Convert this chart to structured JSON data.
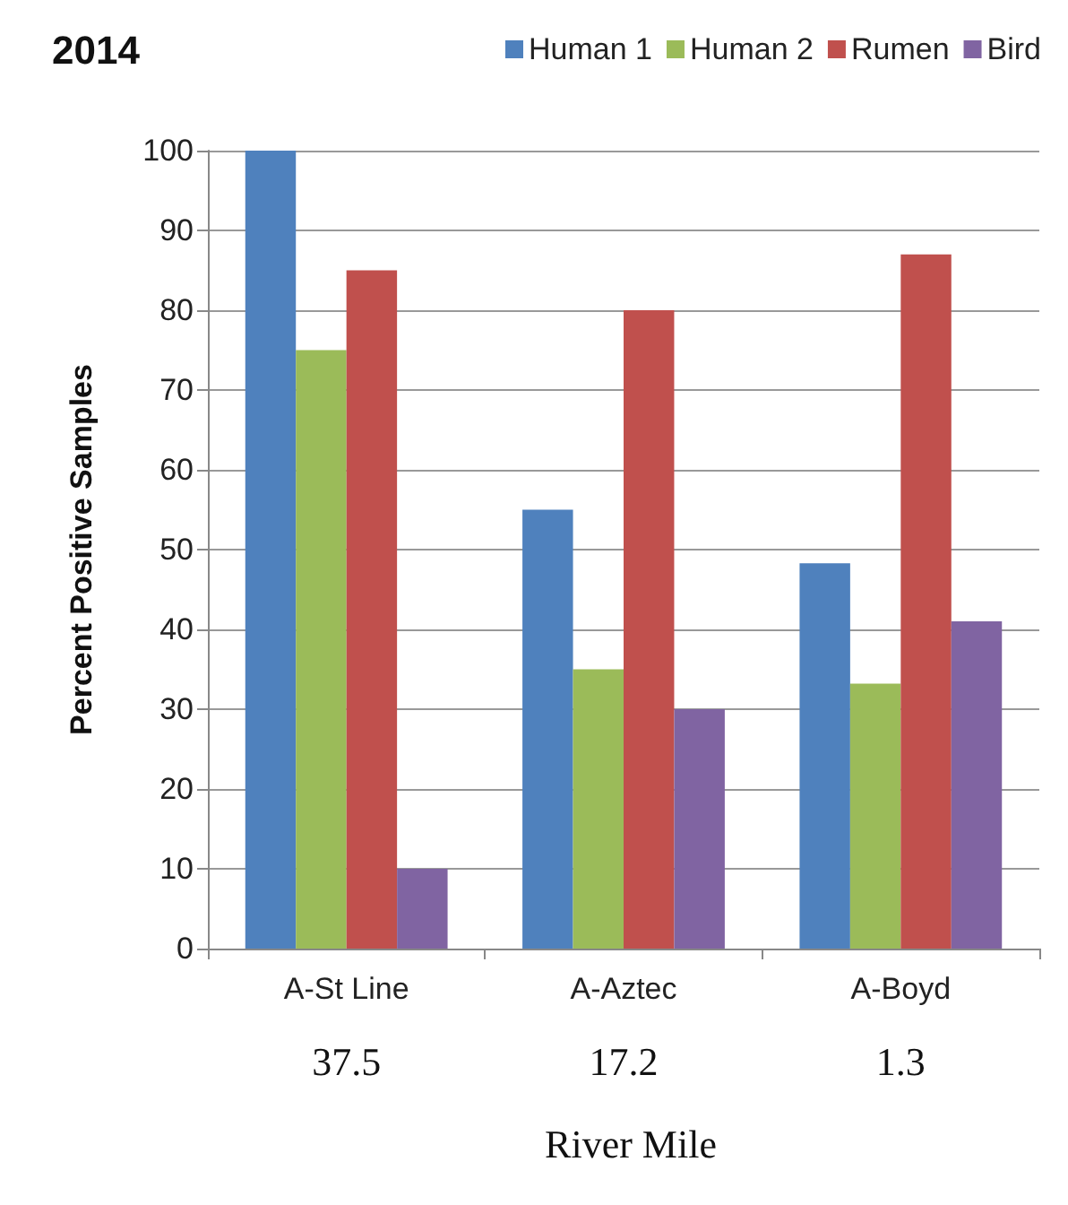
{
  "chart_data": {
    "type": "bar",
    "title": "2014",
    "ylabel": "Percent Positive Samples",
    "xlabel": "River Mile",
    "categories": [
      "A-St Line",
      "A-Aztec",
      "A-Boyd"
    ],
    "series": [
      {
        "name": "Human 1",
        "color": "#4f81bd",
        "values": [
          100,
          55,
          48.3
        ]
      },
      {
        "name": "Human 2",
        "color": "#9bbb59",
        "values": [
          75,
          35,
          33.2
        ]
      },
      {
        "name": "Rumen",
        "color": "#c0504d",
        "values": [
          85,
          80,
          87
        ]
      },
      {
        "name": "Bird",
        "color": "#8064a2",
        "values": [
          10,
          30,
          41
        ]
      }
    ],
    "ylim": [
      0,
      100
    ],
    "yticks": [
      0,
      10,
      20,
      30,
      40,
      50,
      60,
      70,
      80,
      90,
      100
    ],
    "grid": "y",
    "legend": "top right",
    "annotations": [
      "37.5",
      "17.2",
      "1.3"
    ]
  }
}
